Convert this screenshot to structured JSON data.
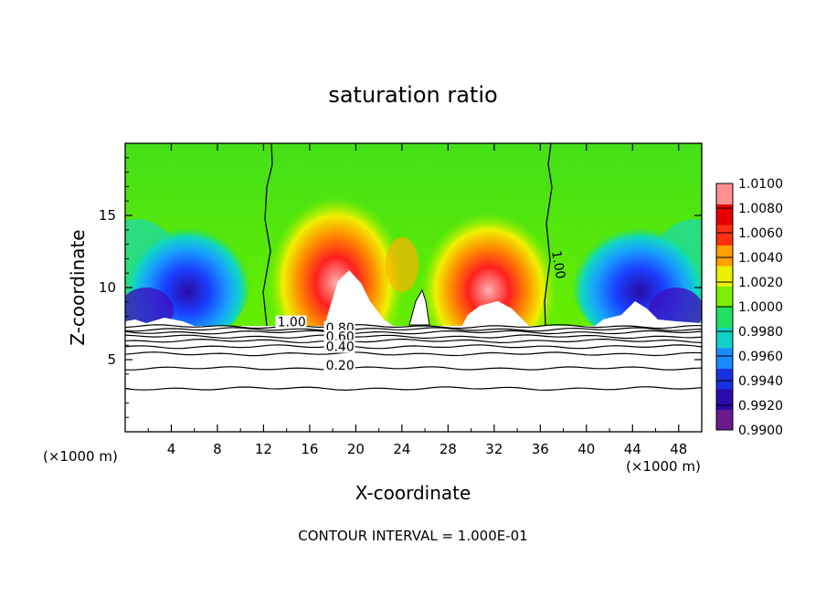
{
  "chart_data": {
    "type": "heatmap",
    "title": "saturation ratio",
    "xlabel": "X-coordinate",
    "ylabel": "Z-coordinate",
    "x_unit_left": "(×1000 m)",
    "x_unit_right": "(×1000 m)",
    "footer": "CONTOUR INTERVAL = 1.000E-01",
    "xlim": [
      0,
      50
    ],
    "ylim": [
      0,
      20
    ],
    "x_ticks": [
      4,
      8,
      12,
      16,
      20,
      24,
      28,
      32,
      36,
      40,
      44,
      48
    ],
    "y_ticks": [
      5,
      10,
      15
    ],
    "colorbar": {
      "levels": [
        "1.0100",
        "1.0080",
        "1.0060",
        "1.0040",
        "1.0020",
        "1.0000",
        "0.9980",
        "0.9960",
        "0.9940",
        "0.9920",
        "0.9900"
      ],
      "min": 0.99,
      "max": 1.01,
      "colors": [
        "#6a1a8a",
        "#2a0aa8",
        "#1a30e0",
        "#1a8aff",
        "#10d0c8",
        "#22e060",
        "#7af000",
        "#eaf000",
        "#ffa000",
        "#ff3010",
        "#e80000",
        "#ff9090"
      ]
    },
    "contour_labels": [
      {
        "text": "1.00",
        "x": 13.2,
        "z": 7.3
      },
      {
        "text": "0.80",
        "x": 17.4,
        "z": 6.9
      },
      {
        "text": "0.60",
        "x": 17.4,
        "z": 6.3
      },
      {
        "text": "0.40",
        "x": 17.4,
        "z": 5.6
      },
      {
        "text": "0.20",
        "x": 17.4,
        "z": 4.3
      },
      {
        "text": "1.00",
        "x": 37.0,
        "z": 12.5
      }
    ],
    "contour_lines_z": [
      3.0,
      4.4,
      5.4,
      5.9,
      6.3,
      6.6,
      6.9,
      7.1,
      7.3
    ],
    "field_top_z": 7.4
  }
}
